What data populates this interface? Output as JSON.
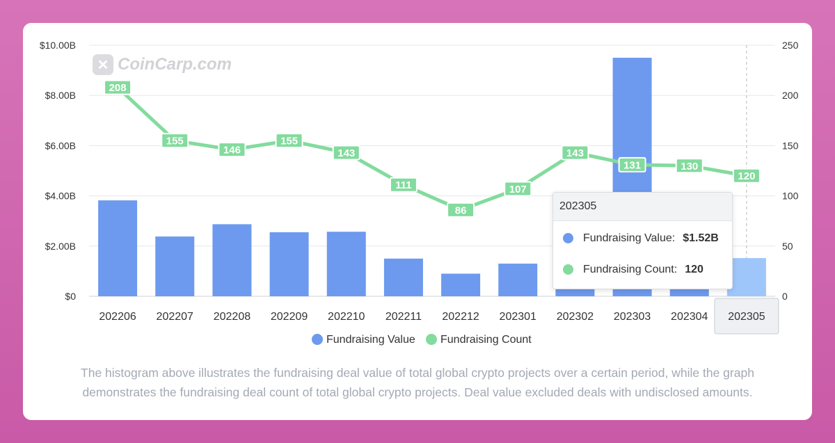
{
  "watermark": {
    "text": "CoinCarp.com",
    "icon": "coincarp-logo-icon"
  },
  "colors": {
    "value_bar": "#6d9aee",
    "value_bar_highlight": "#9ec6fb",
    "count_line": "#83db9d",
    "grid": "#e6e7ea"
  },
  "tooltip": {
    "title": "202305",
    "value_label": "Fundraising Value:",
    "value": "$1.52B",
    "count_label": "Fundraising Count:",
    "count": "120"
  },
  "caption": "The histogram above illustrates the fundraising deal value of total global crypto projects over a certain period, while the graph demonstrates the fundraising deal count of total global crypto projects. Deal value excluded deals with undisclosed amounts.",
  "chart_data": {
    "type": "bar",
    "categories": [
      "202206",
      "202207",
      "202208",
      "202209",
      "202210",
      "202211",
      "202212",
      "202301",
      "202302",
      "202303",
      "202304",
      "202305"
    ],
    "series": [
      {
        "name": "Fundraising Value",
        "type": "bar",
        "axis": "left",
        "values": [
          3.82,
          2.38,
          2.87,
          2.55,
          2.57,
          1.5,
          0.9,
          1.3,
          2.0,
          9.5,
          2.2,
          1.52
        ]
      },
      {
        "name": "Fundraising Count",
        "type": "line",
        "axis": "right",
        "values": [
          208,
          155,
          146,
          155,
          143,
          111,
          86,
          107,
          143,
          131,
          130,
          120
        ]
      }
    ],
    "y_left": {
      "ticks": [
        "$0",
        "$2.00B",
        "$4.00B",
        "$6.00B",
        "$8.00B",
        "$10.00B"
      ],
      "ylim": [
        0,
        10
      ]
    },
    "y_right": {
      "ticks": [
        "0",
        "50",
        "100",
        "150",
        "200",
        "250"
      ],
      "ylim": [
        0,
        250
      ]
    },
    "highlighted_category": "202305",
    "legend_position": "bottom-center",
    "grid": true
  }
}
